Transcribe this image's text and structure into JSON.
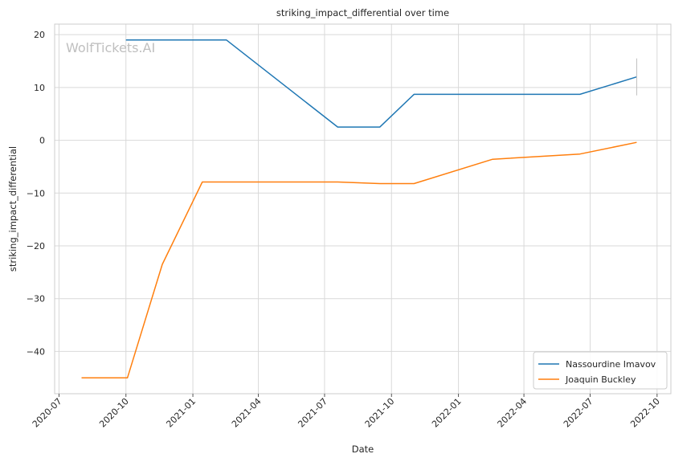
{
  "chart_data": {
    "type": "line",
    "title": "striking_impact_differential over time",
    "xlabel": "Date",
    "ylabel": "striking_impact_differential",
    "watermark": "WolfTickets.AI",
    "x_ticks": [
      "2020-07",
      "2020-10",
      "2021-01",
      "2021-04",
      "2021-07",
      "2021-10",
      "2022-01",
      "2022-04",
      "2022-07",
      "2022-10"
    ],
    "y_ticks": [
      20,
      10,
      0,
      -10,
      -20,
      -30,
      -40
    ],
    "y_tick_labels": [
      "20",
      "10",
      "0",
      "−10",
      "−20",
      "−30",
      "−40"
    ],
    "xlim": [
      "2020-06-25",
      "2022-10-20"
    ],
    "ylim": [
      -48,
      22
    ],
    "grid": true,
    "legend_position": "bottom-right",
    "series": [
      {
        "name": "Nassourdine Imavov",
        "color": "#1f77b4",
        "points": [
          {
            "x": "2020-10-01",
            "y": 19
          },
          {
            "x": "2021-02-16",
            "y": 19
          },
          {
            "x": "2021-07-19",
            "y": 2.5
          },
          {
            "x": "2021-09-15",
            "y": 2.5
          },
          {
            "x": "2021-11-01",
            "y": 8.7
          },
          {
            "x": "2022-06-17",
            "y": 8.7
          },
          {
            "x": "2022-09-03",
            "y": 12
          }
        ],
        "error_bar": {
          "x": "2022-09-03",
          "low": 8.5,
          "high": 15.5
        }
      },
      {
        "name": "Joaquin Buckley",
        "color": "#ff7f0e",
        "points": [
          {
            "x": "2020-08-01",
            "y": -45
          },
          {
            "x": "2020-10-03",
            "y": -45
          },
          {
            "x": "2020-11-20",
            "y": -23.5
          },
          {
            "x": "2021-01-14",
            "y": -7.9
          },
          {
            "x": "2021-07-19",
            "y": -7.9
          },
          {
            "x": "2021-09-15",
            "y": -8.2
          },
          {
            "x": "2021-11-01",
            "y": -8.2
          },
          {
            "x": "2022-02-17",
            "y": -3.6
          },
          {
            "x": "2022-06-17",
            "y": -2.6
          },
          {
            "x": "2022-09-03",
            "y": -0.4
          }
        ]
      }
    ]
  }
}
